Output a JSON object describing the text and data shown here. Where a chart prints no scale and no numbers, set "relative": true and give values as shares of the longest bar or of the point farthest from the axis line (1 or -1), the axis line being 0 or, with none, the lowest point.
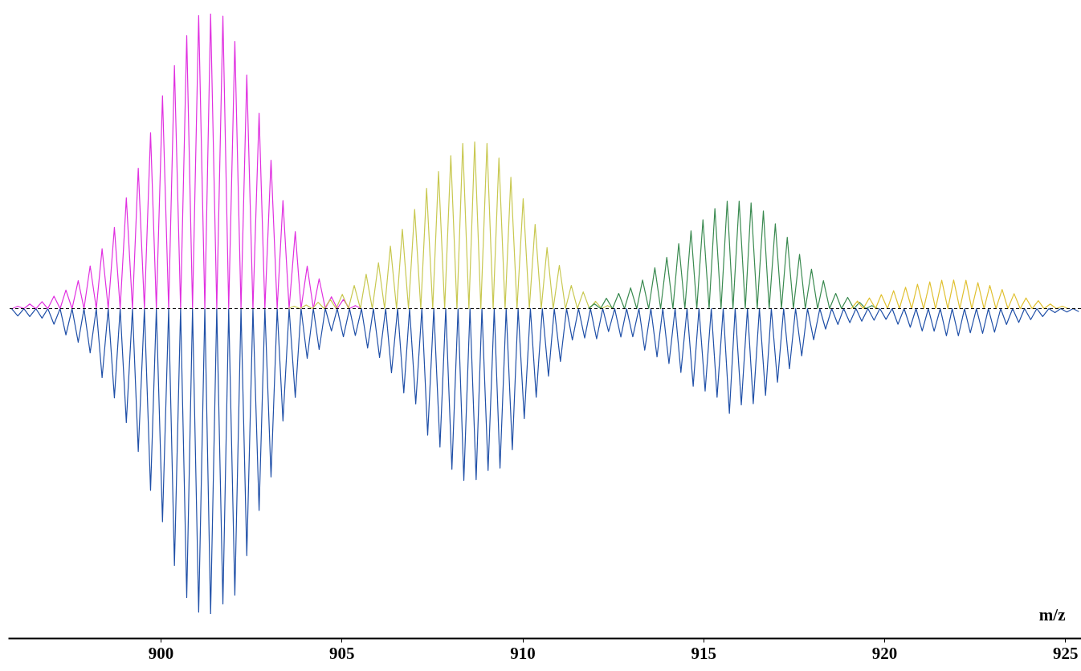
{
  "chart_data": {
    "type": "line",
    "relative": true,
    "xlabel": "m/z",
    "xlim": [
      895.78,
      925.44
    ],
    "xticks": [
      900,
      905,
      910,
      915,
      920,
      925
    ],
    "ref_lines": [
      {
        "axis": "y",
        "value": 0,
        "color": "#000000",
        "line_style": "dashed"
      }
    ],
    "series": [
      {
        "color": "#2050a8",
        "x": [
          895.88,
          896.05,
          896.22,
          896.38,
          896.55,
          896.72,
          896.88,
          897.05,
          897.22,
          897.38,
          897.55,
          897.72,
          897.88,
          898.05,
          898.22,
          898.38,
          898.55,
          898.72,
          898.88,
          899.05,
          899.22,
          899.38,
          899.55,
          899.72,
          899.88,
          900.05,
          900.22,
          900.38,
          900.55,
          900.72,
          900.88,
          901.05,
          901.22,
          901.38,
          901.55,
          901.72,
          901.88,
          902.05,
          902.22,
          902.38,
          902.55,
          902.72,
          902.88,
          903.05,
          903.22,
          903.38,
          903.55,
          903.72,
          903.88,
          904.05,
          904.22,
          904.38,
          904.55,
          904.72,
          904.88,
          905.05,
          905.22,
          905.38,
          905.55,
          905.72,
          905.88,
          906.05,
          906.22,
          906.38,
          906.55,
          906.72,
          906.88,
          907.05,
          907.22,
          907.38,
          907.55,
          907.72,
          907.88,
          908.05,
          908.22,
          908.38,
          908.55,
          908.72,
          908.88,
          909.05,
          909.22,
          909.38,
          909.55,
          909.72,
          909.88,
          910.05,
          910.22,
          910.38,
          910.55,
          910.72,
          910.88,
          911.05,
          911.22,
          911.38,
          911.55,
          911.72,
          911.88,
          912.05,
          912.22,
          912.38,
          912.55,
          912.72,
          912.88,
          913.05,
          913.22,
          913.38,
          913.55,
          913.72,
          913.88,
          914.05,
          914.22,
          914.38,
          914.55,
          914.72,
          914.88,
          915.05,
          915.22,
          915.38,
          915.55,
          915.72,
          915.88,
          916.05,
          916.22,
          916.38,
          916.55,
          916.72,
          916.88,
          917.05,
          917.22,
          917.38,
          917.55,
          917.72,
          917.88,
          918.05,
          918.22,
          918.38,
          918.55,
          918.72,
          918.88,
          919.05,
          919.22,
          919.38,
          919.55,
          919.72,
          919.88,
          920.05,
          920.22,
          920.38,
          920.55,
          920.72,
          920.88,
          921.05,
          921.22,
          921.38,
          921.55,
          921.72,
          921.88,
          922.05,
          922.22,
          922.38,
          922.55,
          922.72,
          922.88,
          923.05,
          923.22,
          923.38,
          923.55,
          923.72,
          923.88,
          924.05,
          924.22,
          924.38,
          924.55,
          924.72,
          924.88,
          925.05,
          925.22,
          925.38
        ],
        "values": [
          0,
          -0.024,
          0,
          -0.026,
          0,
          -0.031,
          0,
          -0.051,
          0,
          -0.086,
          0,
          -0.11,
          0,
          -0.145,
          0,
          -0.226,
          0,
          -0.292,
          0,
          -0.373,
          0,
          -0.468,
          0,
          -0.595,
          0,
          -0.698,
          0,
          -0.841,
          0,
          -0.946,
          0,
          -0.994,
          0,
          -1,
          0,
          -0.967,
          0,
          -0.938,
          0,
          -0.809,
          0,
          -0.661,
          0,
          -0.551,
          0,
          -0.368,
          0,
          -0.291,
          0,
          -0.163,
          0,
          -0.134,
          0,
          -0.073,
          0,
          -0.092,
          0,
          -0.088,
          0,
          -0.129,
          0,
          -0.16,
          0,
          -0.21,
          0,
          -0.276,
          0,
          -0.312,
          0,
          -0.414,
          0,
          -0.453,
          0,
          -0.526,
          0,
          -0.562,
          0,
          -0.56,
          0,
          -0.53,
          0,
          -0.522,
          0,
          -0.462,
          0,
          -0.36,
          0,
          -0.29,
          0,
          -0.221,
          0,
          -0.173,
          0,
          -0.103,
          0,
          -0.096,
          0,
          -0.099,
          0,
          -0.075,
          0,
          -0.093,
          0,
          -0.092,
          0,
          -0.136,
          0,
          -0.158,
          0,
          -0.18,
          0,
          -0.209,
          0,
          -0.254,
          0,
          -0.27,
          0,
          -0.29,
          0,
          -0.343,
          0,
          -0.315,
          0,
          -0.311,
          0,
          -0.284,
          0,
          -0.241,
          0,
          -0.197,
          0,
          -0.155,
          0,
          -0.102,
          0,
          -0.067,
          0,
          -0.052,
          0,
          -0.046,
          0,
          -0.041,
          0,
          -0.038,
          0,
          -0.035,
          0,
          -0.051,
          0,
          -0.061,
          0,
          -0.073,
          0,
          -0.074,
          0,
          -0.089,
          0,
          -0.089,
          0,
          -0.079,
          0,
          -0.081,
          0,
          -0.077,
          0,
          -0.052,
          0,
          -0.045,
          0,
          -0.036,
          0,
          -0.026,
          0,
          -0.013,
          0,
          -0.011,
          0,
          -0.01
        ]
      },
      {
        "color": "#e030e0",
        "x": [
          895.9,
          896.05,
          896.22,
          896.38,
          896.55,
          896.72,
          896.88,
          897.05,
          897.22,
          897.38,
          897.55,
          897.72,
          897.88,
          898.05,
          898.22,
          898.38,
          898.55,
          898.72,
          898.88,
          899.05,
          899.22,
          899.38,
          899.55,
          899.72,
          899.88,
          900.05,
          900.22,
          900.38,
          900.55,
          900.72,
          900.88,
          901.05,
          901.22,
          901.38,
          901.55,
          901.72,
          901.88,
          902.05,
          902.22,
          902.38,
          902.55,
          902.72,
          902.88,
          903.05,
          903.22,
          903.38,
          903.55,
          903.72,
          903.88,
          904.05,
          904.22,
          904.38,
          904.55,
          904.72,
          904.88,
          905.05,
          905.22,
          905.38,
          905.55
        ],
        "values": [
          0,
          0.008,
          0,
          0.015,
          0,
          0.023,
          0,
          0.041,
          0,
          0.061,
          0,
          0.092,
          0,
          0.14,
          0,
          0.196,
          0,
          0.266,
          0,
          0.363,
          0,
          0.46,
          0,
          0.576,
          0,
          0.697,
          0,
          0.796,
          0,
          0.894,
          0,
          0.96,
          0,
          0.966,
          0,
          0.958,
          0,
          0.875,
          0,
          0.765,
          0,
          0.64,
          0,
          0.486,
          0,
          0.354,
          0,
          0.252,
          0,
          0.139,
          0,
          0.098,
          0,
          0.039,
          0,
          0.03,
          0,
          0.01,
          0
        ]
      },
      {
        "color": "#c8c850",
        "x": [
          903.52,
          903.69,
          903.85,
          904.02,
          904.19,
          904.35,
          904.52,
          904.69,
          904.85,
          905.02,
          905.19,
          905.35,
          905.52,
          905.68,
          905.85,
          906.02,
          906.19,
          906.35,
          906.52,
          906.68,
          906.85,
          907.02,
          907.19,
          907.35,
          907.52,
          907.68,
          907.85,
          908.02,
          908.19,
          908.35,
          908.52,
          908.68,
          908.85,
          909.02,
          909.19,
          909.35,
          909.52,
          909.68,
          909.85,
          910.02,
          910.19,
          910.35,
          910.52,
          910.68,
          910.85,
          911.02,
          911.19,
          911.35,
          911.52,
          911.68,
          911.85,
          912.02,
          912.19,
          912.35,
          912.52
        ],
        "values": [
          0,
          0.008,
          0,
          0.012,
          0,
          0.021,
          0,
          0.03,
          0,
          0.047,
          0,
          0.076,
          0,
          0.113,
          0,
          0.15,
          0,
          0.205,
          0,
          0.26,
          0,
          0.325,
          0,
          0.394,
          0,
          0.449,
          0,
          0.501,
          0,
          0.541,
          0,
          0.546,
          0,
          0.541,
          0,
          0.493,
          0,
          0.43,
          0,
          0.36,
          0,
          0.276,
          0,
          0.2,
          0,
          0.142,
          0,
          0.076,
          0,
          0.055,
          0,
          0.024,
          0,
          0.01,
          0
        ]
      },
      {
        "color": "#3a8a50",
        "x": [
          911.82,
          911.99,
          912.16,
          912.32,
          912.49,
          912.66,
          912.82,
          912.99,
          913.16,
          913.32,
          913.49,
          913.66,
          913.82,
          913.99,
          914.16,
          914.32,
          914.49,
          914.66,
          914.82,
          914.99,
          915.16,
          915.32,
          915.49,
          915.66,
          915.82,
          915.99,
          916.16,
          916.32,
          916.49,
          916.66,
          916.82,
          916.99,
          917.16,
          917.32,
          917.49,
          917.66,
          917.82,
          917.99,
          918.16,
          918.32,
          918.49,
          918.66,
          918.82,
          918.99,
          919.16,
          919.32,
          919.49,
          919.66,
          919.82
        ],
        "values": [
          0,
          0.016,
          0,
          0.034,
          0,
          0.05,
          0,
          0.068,
          0,
          0.094,
          0,
          0.134,
          0,
          0.168,
          0,
          0.213,
          0,
          0.255,
          0,
          0.291,
          0,
          0.328,
          0,
          0.352,
          0,
          0.352,
          0,
          0.346,
          0,
          0.32,
          0,
          0.278,
          0,
          0.234,
          0,
          0.178,
          0,
          0.129,
          0,
          0.092,
          0,
          0.05,
          0,
          0.037,
          0,
          0.021,
          0,
          0.01,
          0
        ]
      },
      {
        "color": "#e0c030",
        "x": [
          919.09,
          919.26,
          919.42,
          919.59,
          919.76,
          919.92,
          920.09,
          920.26,
          920.42,
          920.59,
          920.76,
          920.92,
          921.09,
          921.26,
          921.42,
          921.59,
          921.76,
          921.92,
          922.09,
          922.26,
          922.42,
          922.59,
          922.76,
          922.92,
          923.09,
          923.26,
          923.42,
          923.59,
          923.76,
          923.92,
          924.09,
          924.26,
          924.42,
          924.59,
          924.76,
          924.92,
          925.09
        ],
        "values": [
          0,
          0.025,
          0,
          0.035,
          0,
          0.046,
          0,
          0.059,
          0,
          0.07,
          0,
          0.08,
          0,
          0.088,
          0,
          0.093,
          0,
          0.094,
          0,
          0.093,
          0,
          0.085,
          0,
          0.076,
          0,
          0.063,
          0,
          0.049,
          0,
          0.035,
          0,
          0.026,
          0,
          0.015,
          0,
          0.008,
          0
        ]
      }
    ]
  }
}
